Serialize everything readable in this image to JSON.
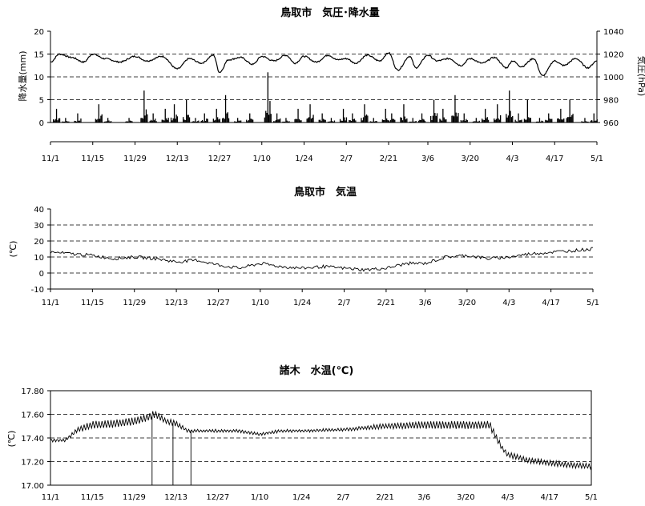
{
  "x_ticks": [
    "11/1",
    "11/15",
    "11/29",
    "12/13",
    "12/27",
    "1/10",
    "1/24",
    "2/7",
    "2/21",
    "3/6",
    "3/20",
    "4/3",
    "4/17",
    "5/1"
  ],
  "chart_data": [
    {
      "id": "pressure_precip",
      "type": "line",
      "title": "鳥取市　気圧･降水量",
      "ylabel": "降水量(mm)",
      "y2label": "気圧(hPa)",
      "ylim": [
        0,
        20
      ],
      "y_ticks": [
        "0",
        "5",
        "10",
        "15",
        "20"
      ],
      "y2lim": [
        960,
        1040
      ],
      "y2_ticks": [
        "960",
        "980",
        "1000",
        "1020",
        "1040"
      ],
      "grid": "dashed-horizontal",
      "series": [
        {
          "axis": "right",
          "style": "line",
          "x": [
            "11/1",
            "11/4",
            "11/8",
            "11/12",
            "11/15",
            "11/19",
            "11/24",
            "11/29",
            "12/3",
            "12/8",
            "12/13",
            "12/17",
            "12/21",
            "12/25",
            "12/27",
            "12/30",
            "1/3",
            "1/7",
            "1/10",
            "1/14",
            "1/18",
            "1/21",
            "1/24",
            "1/28",
            "2/1",
            "2/4",
            "2/7",
            "2/10",
            "2/14",
            "2/18",
            "2/21",
            "2/24",
            "2/28",
            "3/2",
            "3/6",
            "3/9",
            "3/13",
            "3/17",
            "3/20",
            "3/24",
            "3/28",
            "4/1",
            "4/3",
            "4/6",
            "4/10",
            "4/13",
            "4/17",
            "4/20",
            "4/24",
            "4/28",
            "5/1"
          ],
          "values": [
            1013,
            1020,
            1017,
            1013,
            1020,
            1016,
            1013,
            1018,
            1014,
            1018,
            1007,
            1016,
            1012,
            1019,
            1004,
            1015,
            1017,
            1011,
            1018,
            1014,
            1019,
            1012,
            1018,
            1013,
            1019,
            1015,
            1016,
            1012,
            1019,
            1014,
            1021,
            1006,
            1018,
            1008,
            1019,
            1014,
            1016,
            1010,
            1016,
            1012,
            1017,
            1008,
            1014,
            1009,
            1016,
            1001,
            1014,
            1010,
            1016,
            1008,
            1014
          ]
        },
        {
          "axis": "left",
          "style": "bar",
          "x": [
            "11/3",
            "11/6",
            "11/10",
            "11/17",
            "11/20",
            "11/27",
            "12/2",
            "12/5",
            "12/9",
            "12/12",
            "12/16",
            "12/19",
            "12/22",
            "12/26",
            "12/29",
            "1/2",
            "1/6",
            "1/12",
            "1/15",
            "1/18",
            "1/22",
            "1/26",
            "1/30",
            "2/2",
            "2/6",
            "2/9",
            "2/13",
            "2/16",
            "2/20",
            "2/22",
            "2/26",
            "3/1",
            "3/4",
            "3/8",
            "3/11",
            "3/15",
            "3/18",
            "3/22",
            "3/25",
            "3/29",
            "4/2",
            "4/5",
            "4/8",
            "4/12",
            "4/15",
            "4/19",
            "4/22",
            "4/27",
            "4/30"
          ],
          "values": [
            3,
            1,
            2,
            4,
            1,
            1,
            7,
            2,
            3,
            4,
            5,
            1,
            2,
            3,
            6,
            1,
            2,
            11,
            2,
            1,
            3,
            4,
            2,
            1,
            3,
            2,
            4,
            1,
            3,
            2,
            4,
            1,
            2,
            5,
            3,
            6,
            2,
            1,
            3,
            4,
            7,
            2,
            5,
            1,
            2,
            3,
            5,
            1,
            2
          ]
        }
      ]
    },
    {
      "id": "air_temp",
      "type": "line",
      "title": "鳥取市　気温",
      "ylabel": "(℃)",
      "ylim": [
        -10,
        40
      ],
      "y_ticks": [
        "-10",
        "0",
        "10",
        "20",
        "30",
        "40"
      ],
      "grid": "dashed-horizontal",
      "series": [
        {
          "x": [
            "11/1",
            "11/8",
            "11/15",
            "11/22",
            "11/29",
            "12/6",
            "12/13",
            "12/20",
            "12/27",
            "1/3",
            "1/10",
            "1/17",
            "1/24",
            "1/31",
            "2/7",
            "2/14",
            "2/21",
            "2/28",
            "3/6",
            "3/13",
            "3/20",
            "3/27",
            "4/3",
            "4/10",
            "4/17",
            "4/24",
            "5/1"
          ],
          "values": [
            13,
            12,
            11,
            9,
            10,
            9,
            7,
            8,
            5,
            3,
            6,
            4,
            3,
            4,
            3,
            2,
            3,
            6,
            6,
            10,
            11,
            9,
            10,
            12,
            13,
            14,
            15
          ],
          "amplitude": [
            6,
            6,
            6,
            5,
            5,
            5,
            4,
            4,
            5,
            4,
            6,
            4,
            4,
            4,
            4,
            4,
            4,
            5,
            5,
            6,
            6,
            6,
            6,
            6,
            7,
            8,
            10
          ]
        }
      ]
    },
    {
      "id": "water_temp",
      "type": "line",
      "title": "諸木　水温(℃)",
      "ylabel": "(℃)",
      "ylim": [
        17.0,
        17.8
      ],
      "y_ticks": [
        "17.00",
        "17.20",
        "17.40",
        "17.60",
        "17.80"
      ],
      "grid": "dashed-horizontal",
      "series": [
        {
          "x": [
            "11/1",
            "11/6",
            "11/10",
            "11/15",
            "11/22",
            "11/29",
            "12/3",
            "12/6",
            "12/10",
            "12/12",
            "12/13",
            "12/17",
            "12/27",
            "1/3",
            "1/10",
            "1/17",
            "1/24",
            "2/7",
            "2/21",
            "3/6",
            "3/20",
            "3/28",
            "4/1",
            "4/3",
            "4/10",
            "4/17",
            "4/24",
            "5/1"
          ],
          "values": [
            17.38,
            17.38,
            17.47,
            17.51,
            17.52,
            17.54,
            17.57,
            17.6,
            17.54,
            17.53,
            17.52,
            17.46,
            17.46,
            17.46,
            17.43,
            17.46,
            17.46,
            17.47,
            17.5,
            17.51,
            17.51,
            17.51,
            17.32,
            17.26,
            17.21,
            17.19,
            17.17,
            17.16
          ],
          "amplitude": [
            0.01,
            0.01,
            0.02,
            0.03,
            0.03,
            0.03,
            0.03,
            0.03,
            0.02,
            0.02,
            0.02,
            0.01,
            0.01,
            0.01,
            0.01,
            0.01,
            0.01,
            0.01,
            0.02,
            0.03,
            0.03,
            0.03,
            0.02,
            0.02,
            0.02,
            0.02,
            0.02,
            0.02
          ],
          "drops": [
            [
              "12/5",
              17.0
            ],
            [
              "12/12",
              17.0
            ],
            [
              "12/18",
              17.0
            ]
          ]
        }
      ]
    }
  ]
}
